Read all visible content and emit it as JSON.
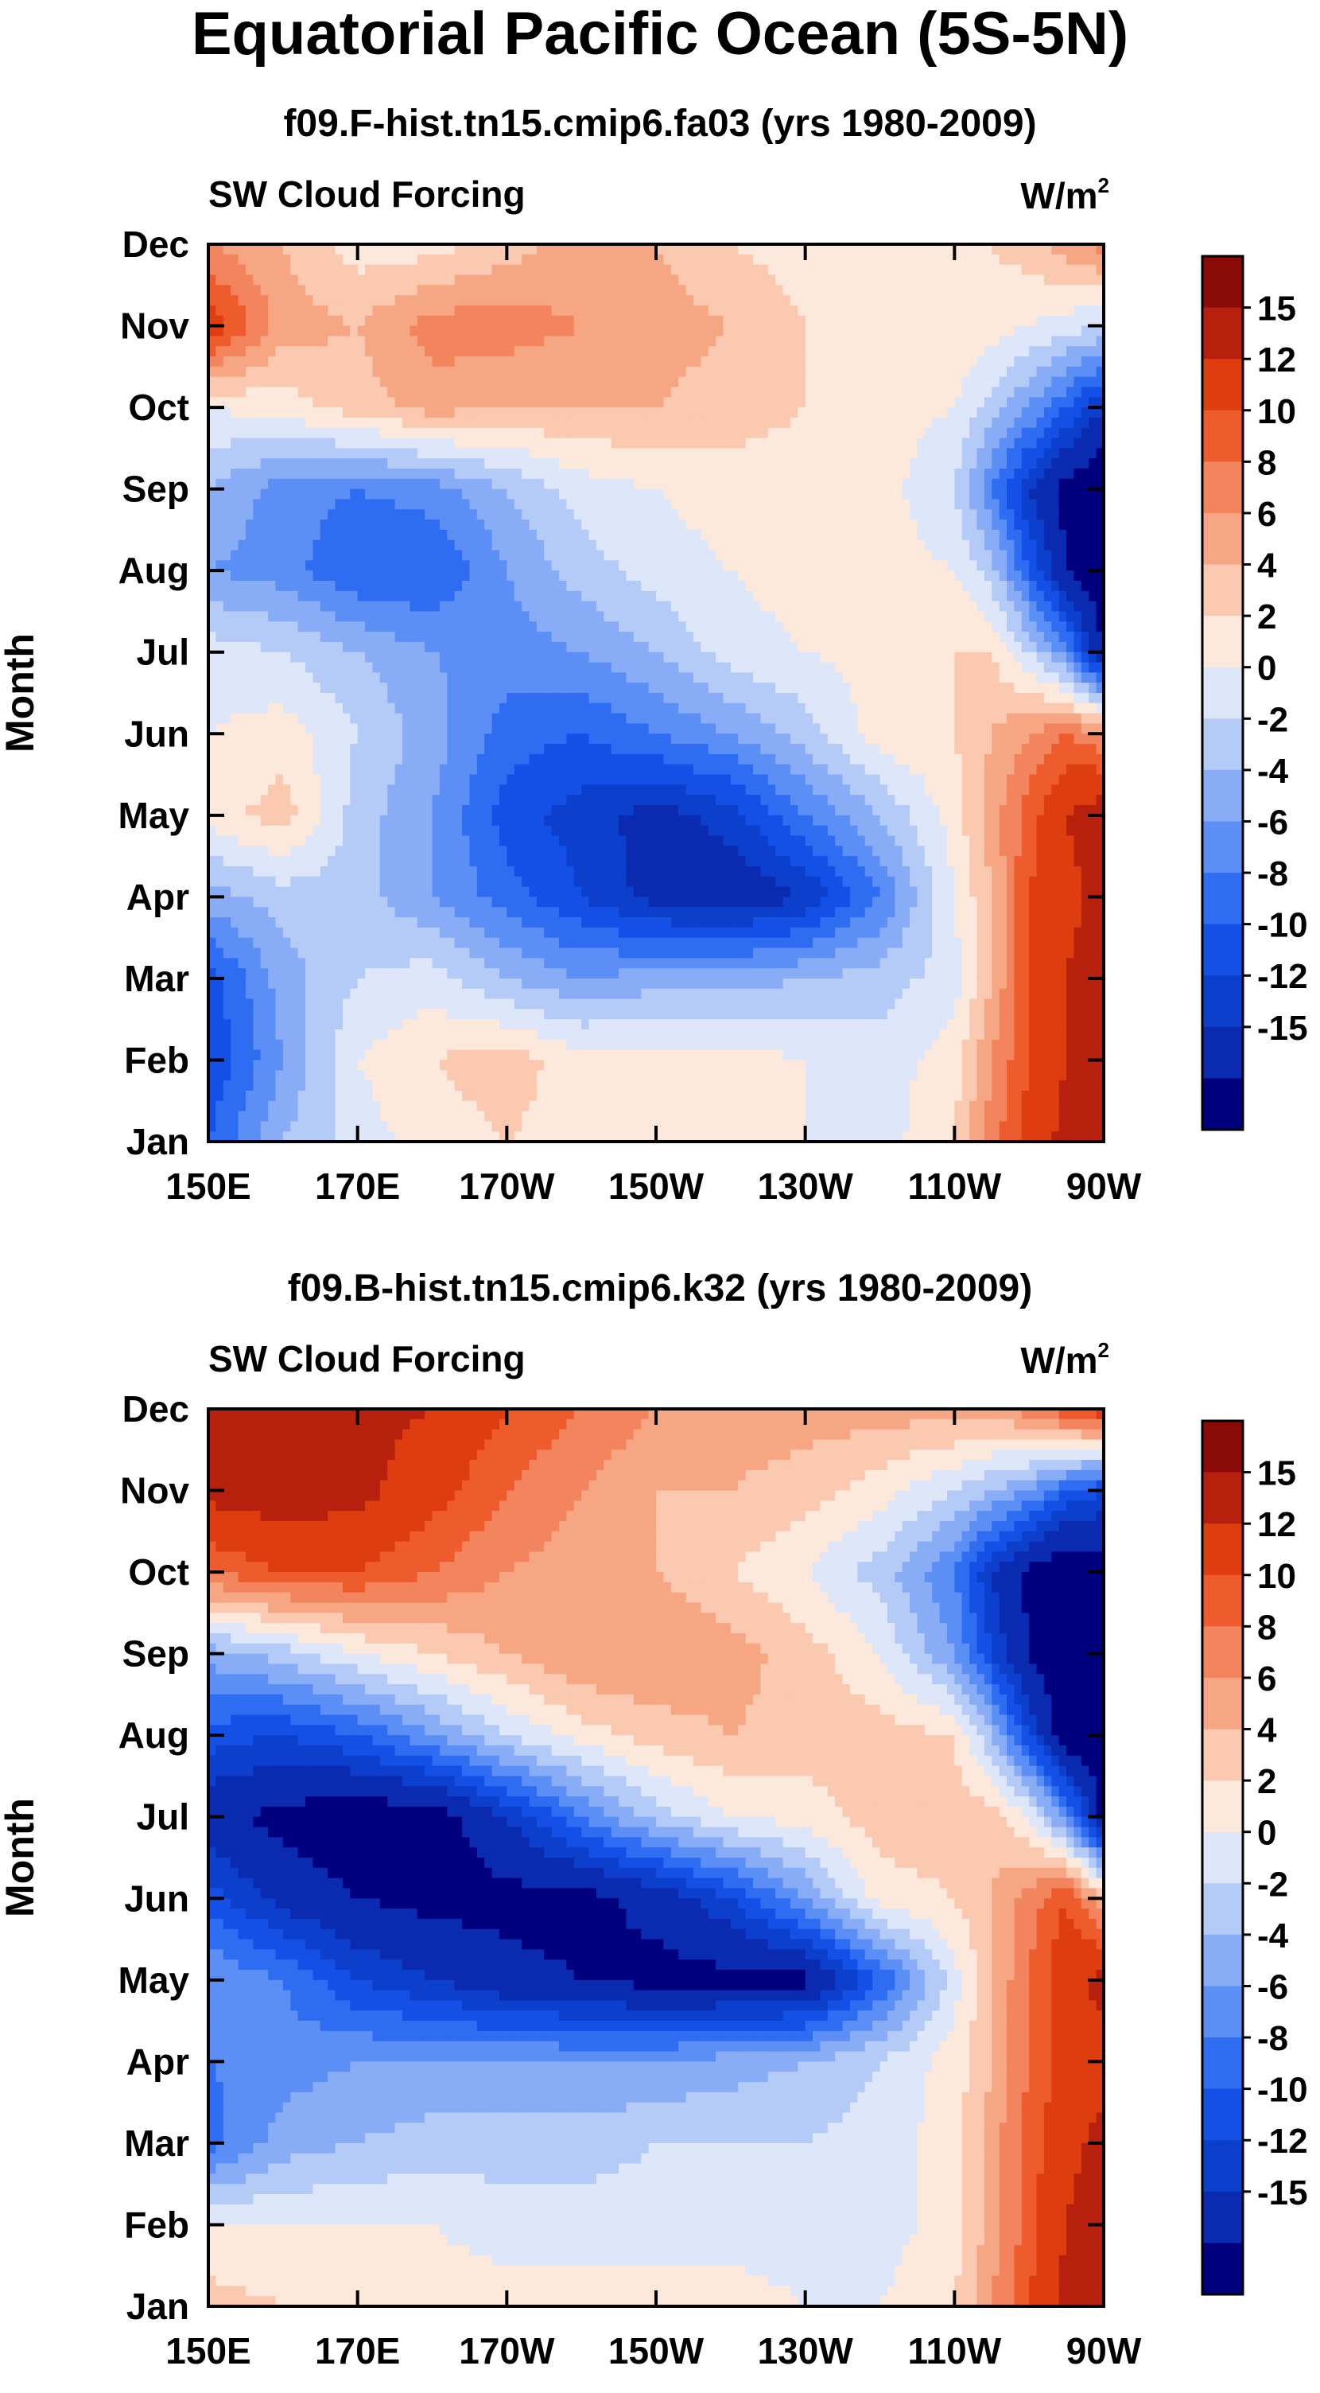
{
  "title": "Equatorial Pacific Ocean (5S-5N)",
  "colors": {
    "levels": [
      "#00007f",
      "#0a2ab0",
      "#0c3fcc",
      "#1450e6",
      "#2e6cf2",
      "#5b8ff5",
      "#88acf5",
      "#b4caf7",
      "#dde7f9",
      "#fde8dc",
      "#fac9b0",
      "#f6a683",
      "#f3855e",
      "#ee5c2e",
      "#de3d0f",
      "#b7200c",
      "#8a0a08"
    ],
    "axis": "#000000"
  },
  "chart_data": [
    {
      "type": "heatmap",
      "id": "fa03",
      "title": "f09.F-hist.tn15.cmip6.fa03 (yrs 1980-2009)",
      "left_string": "SW Cloud Forcing",
      "right_string": "W/m",
      "units_superscript": "2",
      "ylabel": "Month",
      "x_ticks": [
        "150E",
        "170E",
        "170W",
        "150W",
        "130W",
        "110W",
        "90W"
      ],
      "x_range_deg_east": [
        150,
        270
      ],
      "y_ticks": [
        "Jan",
        "Feb",
        "Mar",
        "Apr",
        "May",
        "Jun",
        "Jul",
        "Aug",
        "Sep",
        "Oct",
        "Nov",
        "Dec"
      ],
      "colorbar_labels": [
        "15",
        "12",
        "10",
        "8",
        "6",
        "4",
        "2",
        "0",
        "-2",
        "-4",
        "-6",
        "-8",
        "-10",
        "-12",
        "-15"
      ],
      "levels": [
        -15,
        -12,
        -10,
        -8,
        -6,
        -4,
        -2,
        0,
        2,
        4,
        6,
        8,
        10,
        12,
        15
      ],
      "grid_lon": [
        150,
        160,
        170,
        180,
        190,
        200,
        210,
        220,
        230,
        240,
        250,
        255,
        260,
        265,
        270
      ],
      "grid_month": [
        "Jan",
        "Feb",
        "Mar",
        "Apr",
        "May",
        "Jun",
        "Jul",
        "Aug",
        "Sep",
        "Oct",
        "Nov",
        "Dec"
      ],
      "values": [
        [
          -8,
          -2,
          1,
          3,
          4,
          3,
          3,
          3,
          2,
          1,
          4,
          9,
          13,
          16,
          18
        ],
        [
          -10,
          -4,
          2,
          4,
          5,
          3,
          3,
          3,
          2,
          1,
          3,
          8,
          12,
          15,
          18
        ],
        [
          -9,
          -3,
          0,
          1,
          -2,
          -4,
          -3,
          -3,
          -2,
          -1,
          1,
          6,
          12,
          15,
          17
        ],
        [
          -3,
          -1,
          -1,
          -4,
          -7,
          -10,
          -13,
          -14,
          -12,
          -6,
          2,
          6,
          12,
          14,
          16
        ],
        [
          3,
          5,
          -1,
          -4,
          -9,
          -11,
          -13,
          -11,
          -6,
          -2,
          3,
          7,
          11,
          15,
          17
        ],
        [
          2,
          3,
          0,
          -3,
          -7,
          -8,
          -6,
          -4,
          -1,
          3,
          4,
          6,
          8,
          10,
          8
        ],
        [
          1,
          0,
          -2,
          -4,
          -5,
          -4,
          -2,
          1,
          2,
          3,
          4,
          4,
          0,
          -5,
          -15
        ],
        [
          -4,
          -5,
          -8,
          -8,
          -4,
          -1,
          1,
          2,
          3,
          3,
          2,
          -1,
          -8,
          -15,
          -18
        ],
        [
          -2,
          -5,
          -6,
          -5,
          -2,
          1,
          2,
          3,
          3,
          3,
          0,
          -6,
          -12,
          -16,
          -18
        ],
        [
          2,
          3,
          5,
          7,
          6,
          6,
          6,
          5,
          4,
          3,
          2,
          -1,
          -4,
          -8,
          -12
        ],
        [
          14,
          7,
          6,
          9,
          9,
          8,
          7,
          6,
          4,
          3,
          4,
          3,
          2,
          1,
          0
        ],
        [
          8,
          6,
          3,
          3,
          5,
          7,
          6,
          4,
          3,
          3,
          3,
          4,
          5,
          7,
          9
        ]
      ]
    },
    {
      "type": "heatmap",
      "id": "k32",
      "title": "f09.B-hist.tn15.cmip6.k32 (yrs 1980-2009)",
      "left_string": "SW Cloud Forcing",
      "right_string": "W/m",
      "units_superscript": "2",
      "ylabel": "Month",
      "x_ticks": [
        "150E",
        "170E",
        "170W",
        "150W",
        "130W",
        "110W",
        "90W"
      ],
      "x_range_deg_east": [
        150,
        270
      ],
      "y_ticks": [
        "Jan",
        "Feb",
        "Mar",
        "Apr",
        "May",
        "Jun",
        "Jul",
        "Aug",
        "Sep",
        "Oct",
        "Nov",
        "Dec"
      ],
      "colorbar_labels": [
        "15",
        "12",
        "10",
        "8",
        "6",
        "4",
        "2",
        "0",
        "-2",
        "-4",
        "-6",
        "-8",
        "-10",
        "-12",
        "-15"
      ],
      "levels": [
        -15,
        -12,
        -10,
        -8,
        -6,
        -4,
        -2,
        0,
        2,
        4,
        6,
        8,
        10,
        12,
        15
      ],
      "grid_lon": [
        150,
        160,
        170,
        180,
        190,
        200,
        210,
        220,
        230,
        240,
        250,
        255,
        260,
        265,
        270
      ],
      "grid_month": [
        "Jan",
        "Feb",
        "Mar",
        "Apr",
        "May",
        "Jun",
        "Jul",
        "Aug",
        "Sep",
        "Oct",
        "Nov",
        "Dec"
      ],
      "values": [
        [
          5,
          4,
          3,
          3,
          3,
          3,
          3,
          3,
          2,
          2,
          4,
          8,
          12,
          16,
          18
        ],
        [
          2,
          2,
          2,
          2,
          1,
          1,
          1,
          1,
          1,
          1,
          3,
          7,
          11,
          15,
          17
        ],
        [
          -7,
          -3,
          -2,
          -1,
          -1,
          -1,
          0,
          0,
          0,
          1,
          3,
          7,
          11,
          14,
          16
        ],
        [
          -6,
          -5,
          -4,
          -4,
          -4,
          -4,
          -4,
          -3,
          -2,
          0,
          3,
          6,
          10,
          13,
          14
        ],
        [
          -4,
          -6,
          -10,
          -12,
          -14,
          -15,
          -16,
          -16,
          -16,
          -8,
          1,
          6,
          10,
          14,
          16
        ],
        [
          -9,
          -13,
          -15,
          -16,
          -16,
          -16,
          -14,
          -10,
          -4,
          3,
          4,
          6,
          9,
          12,
          6
        ],
        [
          -14,
          -16,
          -17,
          -17,
          -12,
          -6,
          -1,
          2,
          3,
          5,
          5,
          5,
          2,
          -5,
          -16
        ],
        [
          -9,
          -10,
          -8,
          -4,
          0,
          3,
          5,
          6,
          5,
          5,
          4,
          -2,
          -10,
          -17,
          -18
        ],
        [
          -3,
          -1,
          2,
          4,
          6,
          8,
          8,
          7,
          5,
          2,
          -4,
          -10,
          -15,
          -18,
          -18
        ],
        [
          10,
          12,
          12,
          10,
          8,
          7,
          6,
          4,
          2,
          -1,
          -6,
          -12,
          -16,
          -18,
          -17
        ],
        [
          16,
          17,
          16,
          13,
          10,
          8,
          6,
          6,
          5,
          3,
          0,
          -2,
          -4,
          -8,
          -10
        ],
        [
          17,
          16,
          16,
          15,
          12,
          10,
          8,
          7,
          7,
          7,
          7,
          7,
          9,
          12,
          14
        ]
      ]
    }
  ]
}
